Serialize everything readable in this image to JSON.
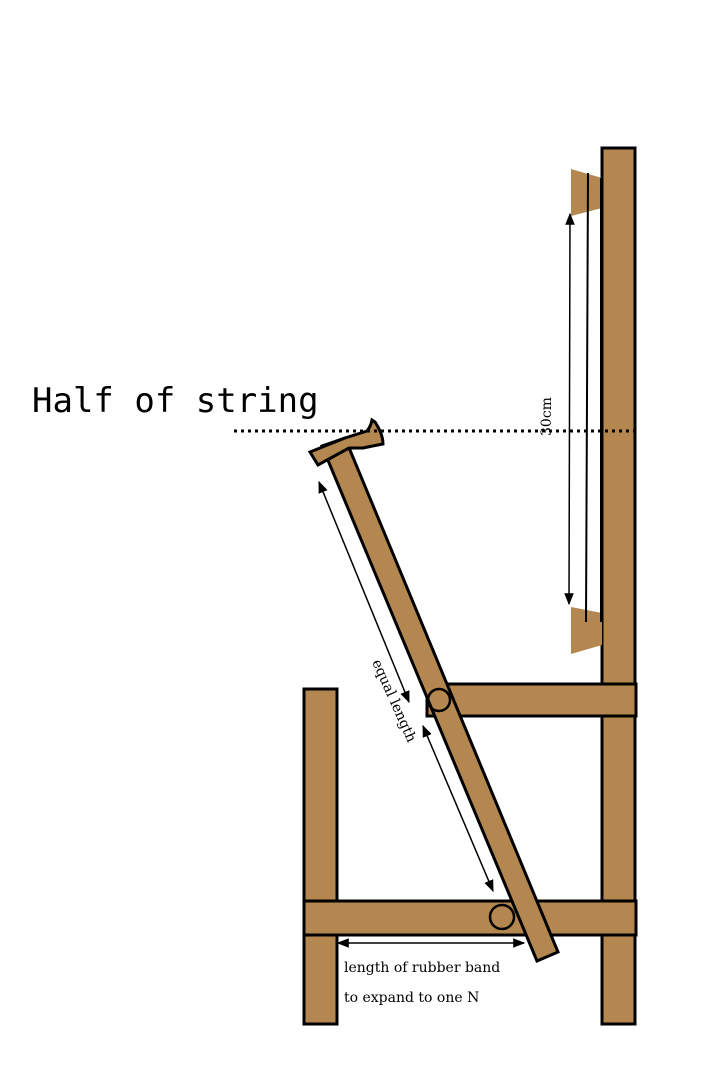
{
  "labels": {
    "half_of_string": "Half of string",
    "dimension_30cm": "30cm",
    "equal_length": "equal length",
    "rubber_band_line1": "length of rubber band",
    "rubber_band_line2": "to expand to one N"
  },
  "colors": {
    "wood": "#b3874f",
    "outline": "#000000",
    "background": "#ffffff"
  }
}
